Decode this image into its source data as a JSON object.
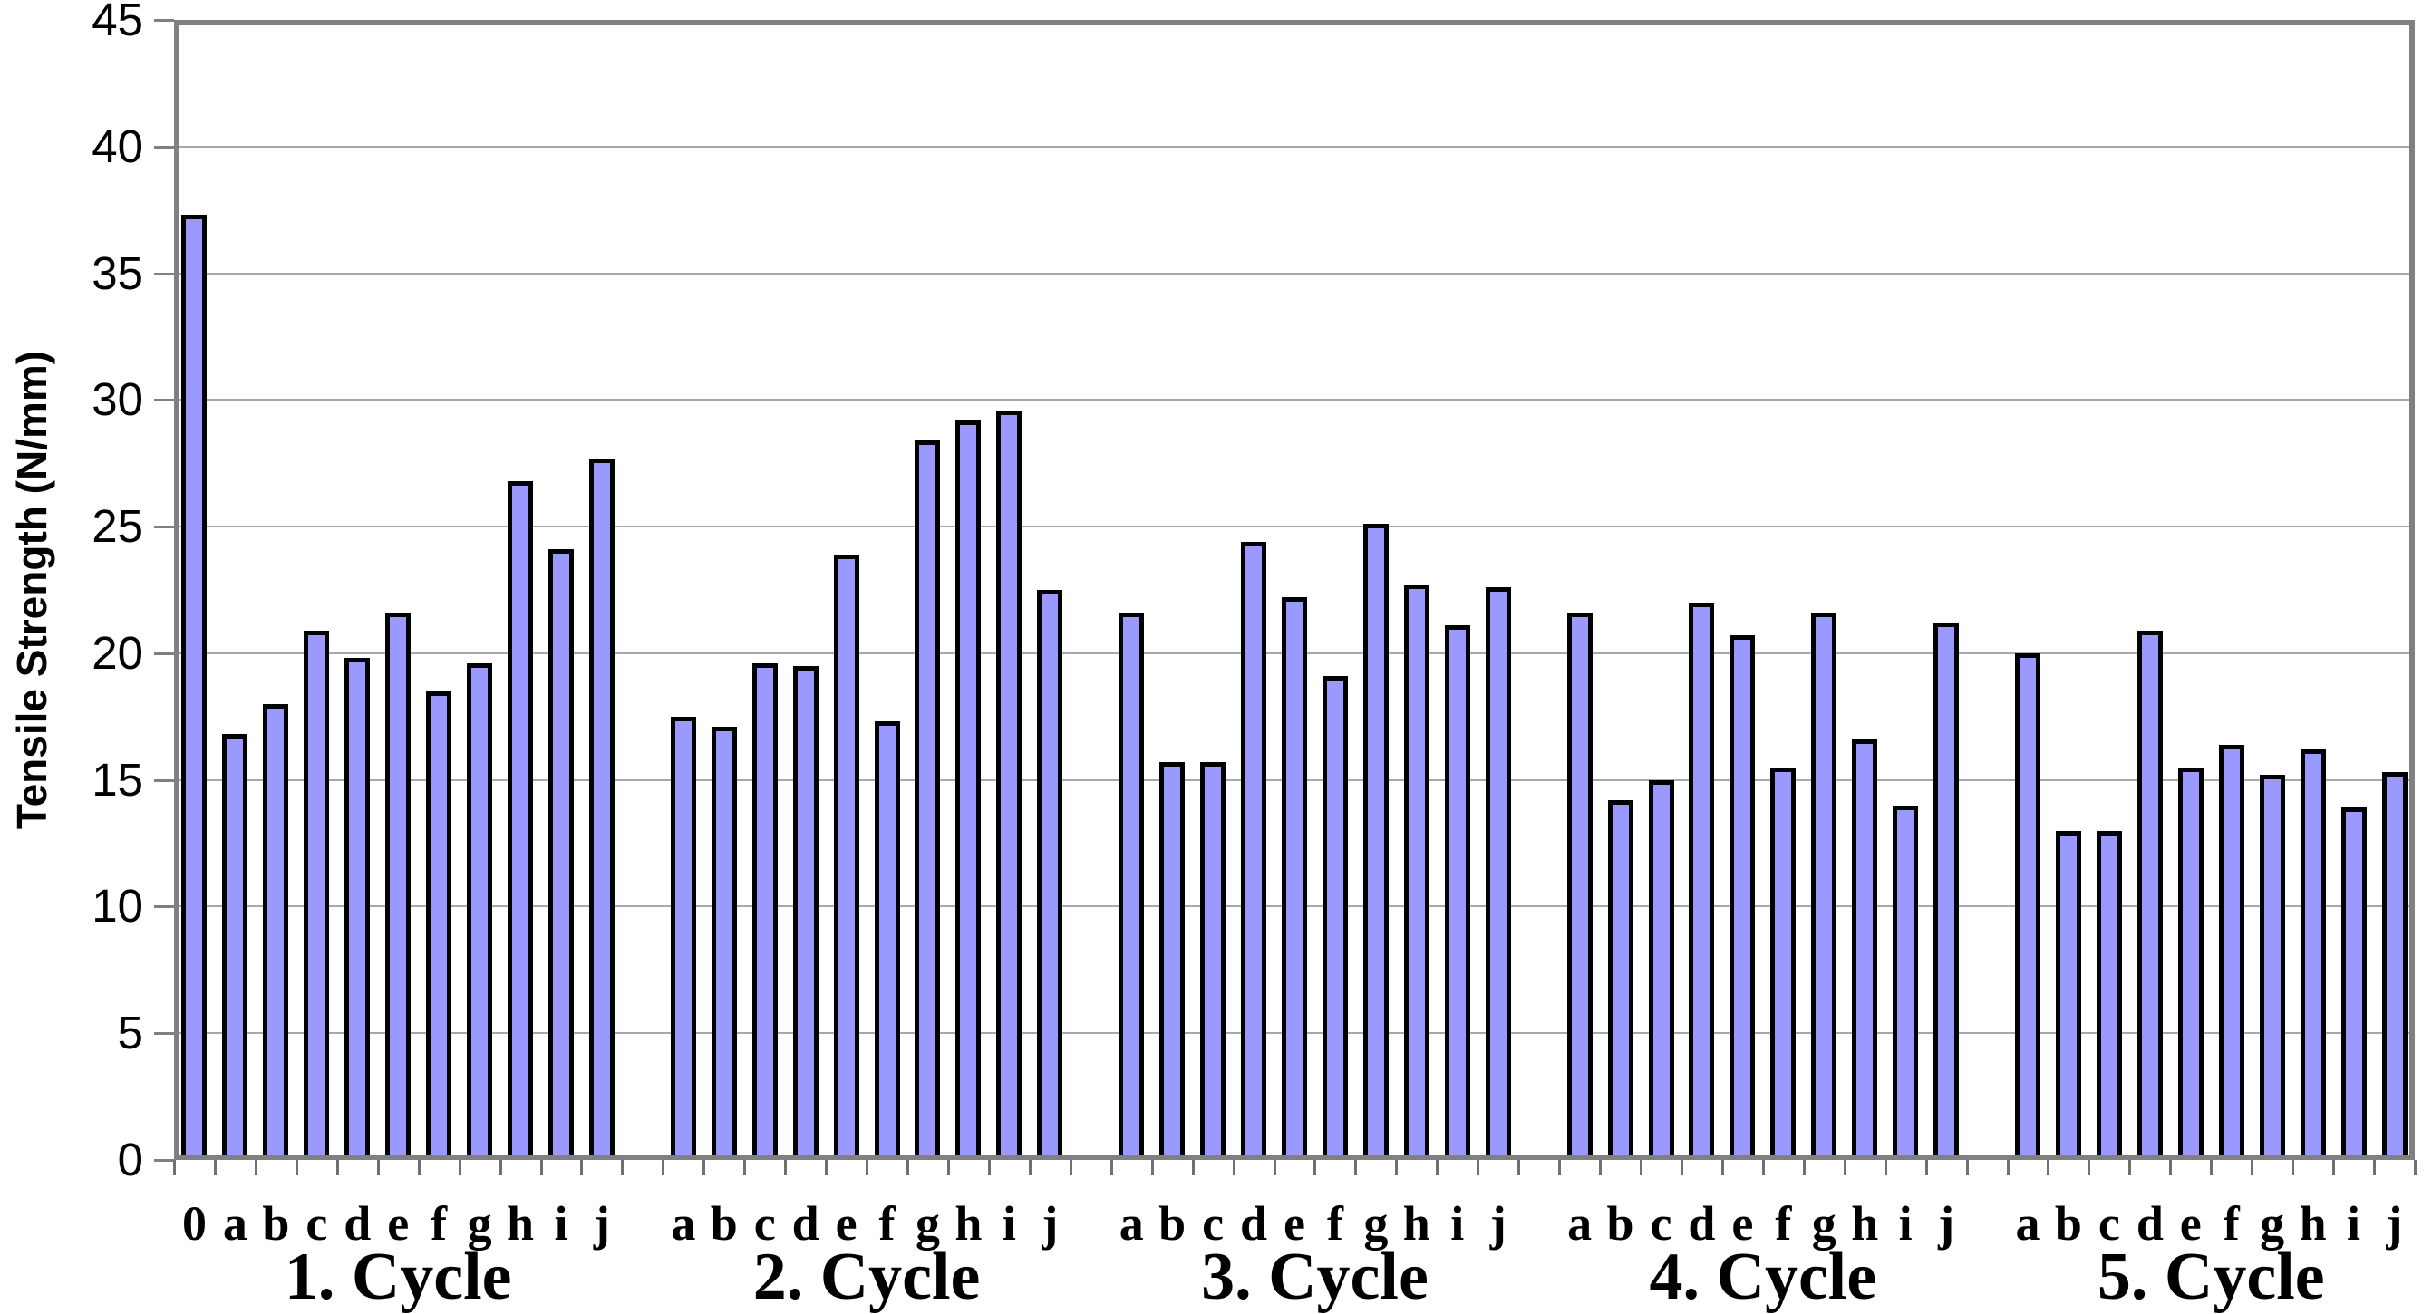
{
  "chart_data": {
    "type": "bar",
    "title": "",
    "ylabel": "Tensile Strength (N/mm)",
    "xlabel": "",
    "ylim": [
      0,
      45
    ],
    "ytick_step": 5,
    "yticks": [
      0,
      5,
      10,
      15,
      20,
      25,
      30,
      35,
      40,
      45
    ],
    "grid": true,
    "legend": false,
    "colors": {
      "bar_fill": "#9999FF",
      "bar_border": "#000000",
      "plot_border": "#808080",
      "gridline": "#A8A8A8",
      "tick": "#808080",
      "text": "#000000",
      "background": "#FFFFFF"
    },
    "groups": [
      {
        "label": "1. Cycle",
        "categories": [
          "0",
          "a",
          "b",
          "c",
          "d",
          "e",
          "f",
          "g",
          "h",
          "i",
          "j"
        ],
        "values": [
          37.3,
          16.8,
          18.0,
          20.9,
          19.8,
          21.6,
          18.5,
          19.6,
          26.8,
          24.1,
          27.7
        ]
      },
      {
        "label": "2. Cycle",
        "categories": [
          "a",
          "b",
          "c",
          "d",
          "e",
          "f",
          "g",
          "h",
          "i",
          "j"
        ],
        "values": [
          17.5,
          17.1,
          19.6,
          19.5,
          23.9,
          17.3,
          28.4,
          29.2,
          29.6,
          22.5
        ]
      },
      {
        "label": "3. Cycle",
        "categories": [
          "a",
          "b",
          "c",
          "d",
          "e",
          "f",
          "g",
          "h",
          "i",
          "j"
        ],
        "values": [
          21.6,
          15.7,
          15.7,
          24.4,
          22.2,
          19.1,
          25.1,
          22.7,
          21.1,
          22.6
        ]
      },
      {
        "label": "4. Cycle",
        "categories": [
          "a",
          "b",
          "c",
          "d",
          "e",
          "f",
          "g",
          "h",
          "i",
          "j"
        ],
        "values": [
          21.6,
          14.2,
          15.0,
          22.0,
          20.7,
          15.5,
          21.6,
          16.6,
          14.0,
          21.2
        ]
      },
      {
        "label": "5. Cycle",
        "categories": [
          "a",
          "b",
          "c",
          "d",
          "e",
          "f",
          "g",
          "h",
          "i",
          "j"
        ],
        "values": [
          20.0,
          13.0,
          13.0,
          20.9,
          15.5,
          16.4,
          15.2,
          16.2,
          13.9,
          15.3
        ]
      }
    ]
  }
}
